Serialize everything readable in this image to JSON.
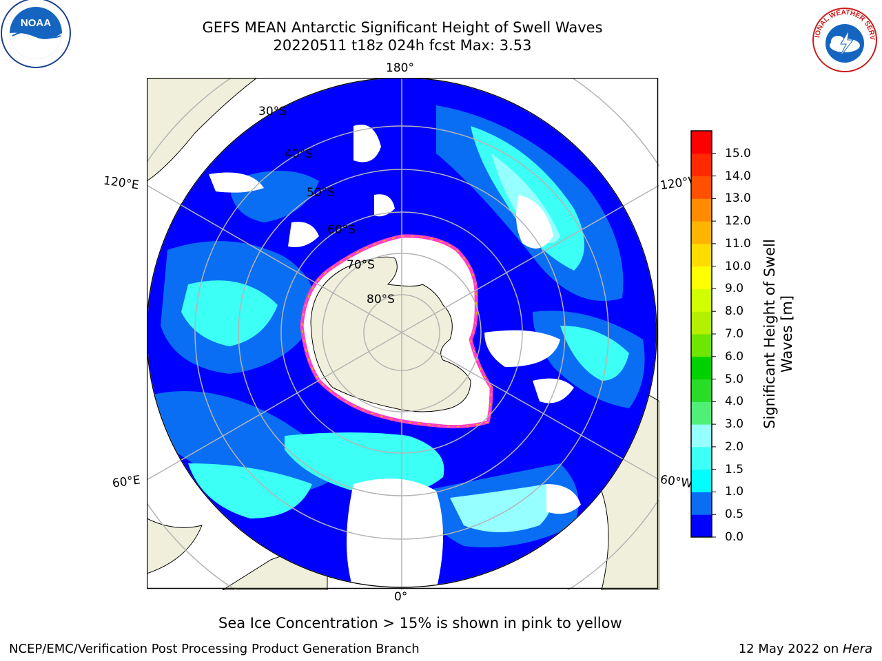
{
  "header": {
    "title_line1": "GEFS MEAN Antarctic Significant Height of Swell Waves",
    "title_line2": "20220511 t18z 024h fcst   Max: 3.53"
  },
  "map": {
    "projection": "south-polar-stereographic",
    "longitude_labels": [
      "180°",
      "120°E",
      "120°W",
      "60°E",
      "60°W",
      "0°"
    ],
    "latitude_labels": [
      "30°S",
      "40°S",
      "50°S",
      "60°S",
      "70°S",
      "80°S"
    ],
    "colors": {
      "land": "#efefdb",
      "sea_ice": "#ffffff",
      "ice_edge": "#ff40c0",
      "graticule": "#b4b4b4"
    }
  },
  "colorbar": {
    "label": "Significant Height of Swell Waves [m]",
    "ticks": [
      "0.0",
      "0.5",
      "1.0",
      "1.5",
      "2.0",
      "3.0",
      "4.0",
      "5.0",
      "6.0",
      "7.0",
      "8.0",
      "9.0",
      "10.0",
      "11.0",
      "12.0",
      "13.0",
      "14.0",
      "15.0"
    ],
    "colors": [
      "#0000ff",
      "#0a6ef5",
      "#00ffff",
      "#3cfff5",
      "#96ffff",
      "#50f078",
      "#28dc28",
      "#00d200",
      "#6ee600",
      "#b4f000",
      "#d2ff00",
      "#ffff00",
      "#ffdc00",
      "#ffb400",
      "#ff8c00",
      "#ff5000",
      "#ff2800",
      "#ff0000"
    ]
  },
  "notes": {
    "caption": "Sea Ice Concentration > 15% is shown in pink to yellow"
  },
  "footer": {
    "left": "NCEP/EMC/Verification Post Processing Product Generation Branch",
    "date": "12 May 2022 on ",
    "machine": "Hera"
  },
  "logos": {
    "noaa_text": "NOAA",
    "nws_text": "NATIONAL WEATHER SERVICE"
  }
}
